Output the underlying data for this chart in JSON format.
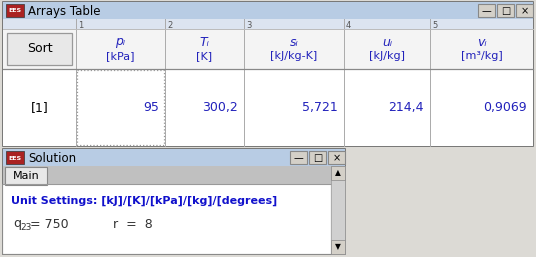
{
  "top_window_title": "Arrays Table",
  "sort_label": "Sort",
  "col_numbers": [
    "1",
    "2",
    "3",
    "4",
    "5"
  ],
  "col_headers_line1": [
    "pᵢ",
    "Tᵢ",
    "sᵢ",
    "uᵢ",
    "vᵢ"
  ],
  "col_headers_line2": [
    "[kPa]",
    "[K]",
    "[kJ/kg-K]",
    "[kJ/kg]",
    "[m³/kg]"
  ],
  "row_label": "[1]",
  "row_values": [
    "95",
    "300,2",
    "5,721",
    "214,4",
    "0,9069"
  ],
  "bottom_window_title": "Solution",
  "bottom_tab_label": "Main",
  "unit_settings_text": "Unit Settings: [kJ]/[K]/[kPa]/[kg]/[degrees]",
  "header_text_color": "#2222bb",
  "value_text_color": "#2222bb",
  "title_bar_bg": "#b8cce4",
  "outer_bg": "#f0f0f0",
  "tab_bar_bg": "#c0c0c0",
  "content_bg": "#ffffff",
  "sort_btn_bg": "#e8e8e8",
  "col_num_row_bg": "#dce4f0",
  "header_row_bg": "#f4f4f4",
  "window_bg": "#ece9d8",
  "scrollbar_bg": "#d0d0d0",
  "btn_bg": "#d4d0c8"
}
